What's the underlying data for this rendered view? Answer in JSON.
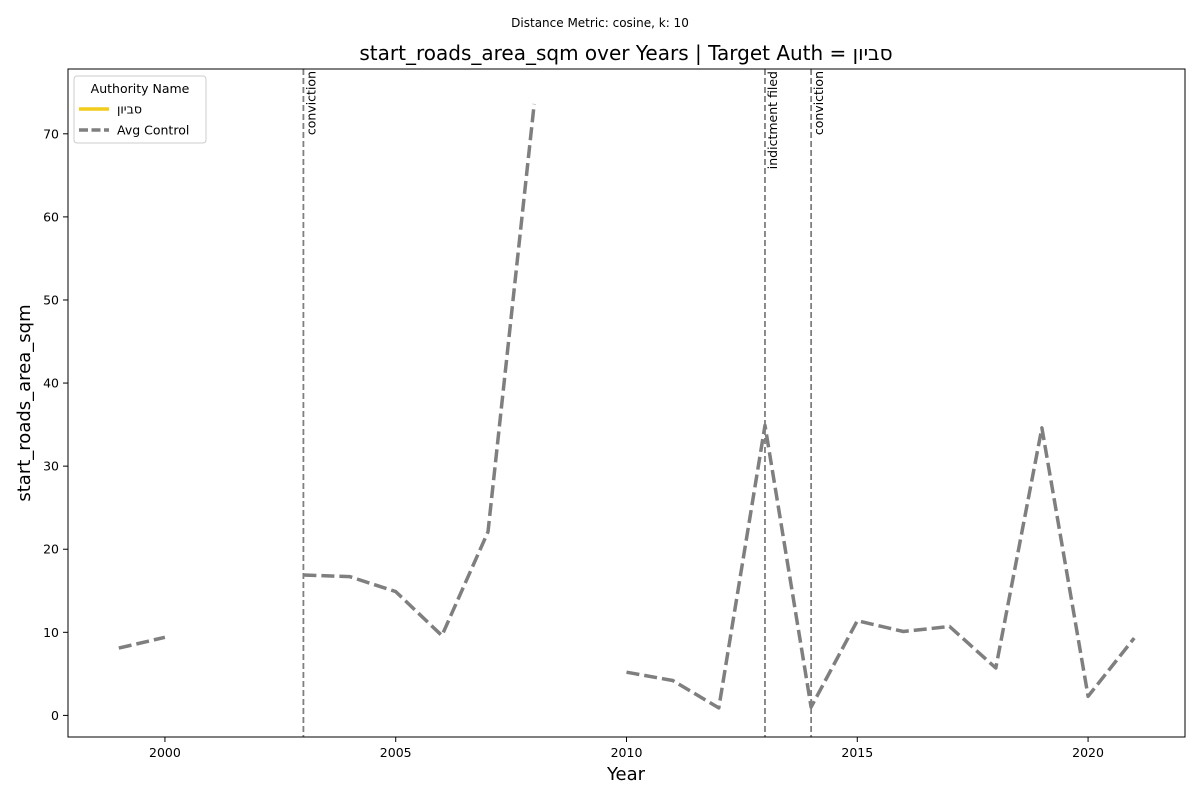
{
  "chart_data": {
    "type": "line",
    "suptitle": "Distance Metric: cosine, k: 10",
    "title": "start_roads_area_sqm over Years | Target Auth = סביון",
    "xlabel": "Year",
    "ylabel": "start_roads_area_sqm",
    "xlim": [
      1997.9,
      2022.1
    ],
    "ylim": [
      -2.6,
      77.8
    ],
    "xticks": [
      2000,
      2005,
      2010,
      2015,
      2020
    ],
    "yticks": [
      0,
      10,
      20,
      30,
      40,
      50,
      60,
      70
    ],
    "grid": false,
    "legend": {
      "title": "Authority Name",
      "placement": "top-left"
    },
    "series": [
      {
        "name": "סביון",
        "color": "#f2cc1b",
        "style": "solid",
        "points": []
      },
      {
        "name": "Avg Control",
        "color": "#7f7f7f",
        "style": "dashed",
        "points": [
          [
            1999,
            8.1
          ],
          [
            2000,
            9.4
          ],
          [
            2001,
            null
          ],
          [
            2002,
            null
          ],
          [
            2003,
            16.9
          ],
          [
            2004,
            16.7
          ],
          [
            2005,
            14.9
          ],
          [
            2006,
            9.6
          ],
          [
            2007,
            22.1
          ],
          [
            2008,
            73.6
          ],
          [
            2009,
            null
          ],
          [
            2010,
            5.2
          ],
          [
            2011,
            4.2
          ],
          [
            2012,
            0.9
          ],
          [
            2013,
            34.9
          ],
          [
            2014,
            1.0
          ],
          [
            2015,
            11.4
          ],
          [
            2016,
            10.1
          ],
          [
            2017,
            10.7
          ],
          [
            2018,
            5.7
          ],
          [
            2019,
            34.6
          ],
          [
            2020,
            2.3
          ],
          [
            2021,
            9.3
          ]
        ]
      }
    ],
    "annotations": [
      {
        "x": 2003,
        "label": "conviction"
      },
      {
        "x": 2013,
        "label": "indictment filed"
      },
      {
        "x": 2014,
        "label": "conviction"
      }
    ]
  }
}
